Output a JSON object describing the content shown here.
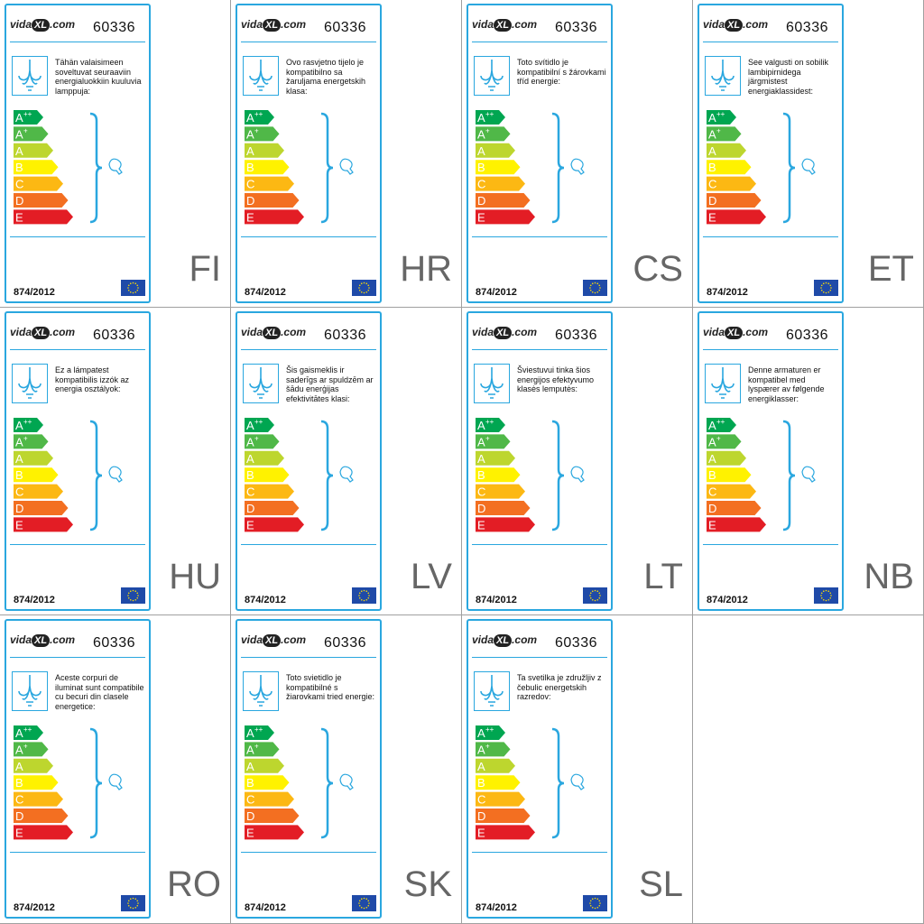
{
  "logo": {
    "brand": "vida",
    "xl": "XL",
    "tld": ".com"
  },
  "product_code": "60336",
  "regulation": "874/2012",
  "classes": [
    {
      "letter": "A",
      "sup": "++",
      "color": "#00a651"
    },
    {
      "letter": "A",
      "sup": "+",
      "color": "#50b848"
    },
    {
      "letter": "A",
      "color": "#bdd62e"
    },
    {
      "letter": "B",
      "color": "#fff200"
    },
    {
      "letter": "C",
      "color": "#fcb813"
    },
    {
      "letter": "D",
      "color": "#f36f21"
    },
    {
      "letter": "E",
      "color": "#e31d25"
    }
  ],
  "labels": [
    {
      "lang": "FI",
      "text": "Tähän valaisimeen soveltuvat seuraaviin energialuokkiin kuuluvia lamppuja:"
    },
    {
      "lang": "HR",
      "text": "Ovo rasvjetno tijelo je kompatibilno sa žaruljama energetskih klasa:"
    },
    {
      "lang": "CS",
      "text": "Toto svítidlo je kompatibilní s žárovkami tříd energie:"
    },
    {
      "lang": "ET",
      "text": "See valgusti on sobilik lambipirnidega järgmistest energiaklassidest:"
    },
    {
      "lang": "HU",
      "text": "Ez a lámpatest kompatibilis izzók az energia osztályok:"
    },
    {
      "lang": "LV",
      "text": "Šis gaismeklis ir saderīgs ar spuldzēm ar šādu enerģijas efektivitātes klasi:"
    },
    {
      "lang": "LT",
      "text": "Šviestuvui tinka šios energijos efektyvumo klasės lemputės:"
    },
    {
      "lang": "NB",
      "text": "Denne armaturen er kompatibel med lyspærer av følgende energiklasser:"
    },
    {
      "lang": "RO",
      "text": "Aceste corpuri de iluminat sunt compatibile cu becuri din clasele energetice:"
    },
    {
      "lang": "SK",
      "text": "Toto svietidlo je kompatibilné s žiarovkami tried energie:"
    },
    {
      "lang": "SL",
      "text": "Ta svetilka je združljiv z čebulic energetskih razredov:"
    }
  ]
}
